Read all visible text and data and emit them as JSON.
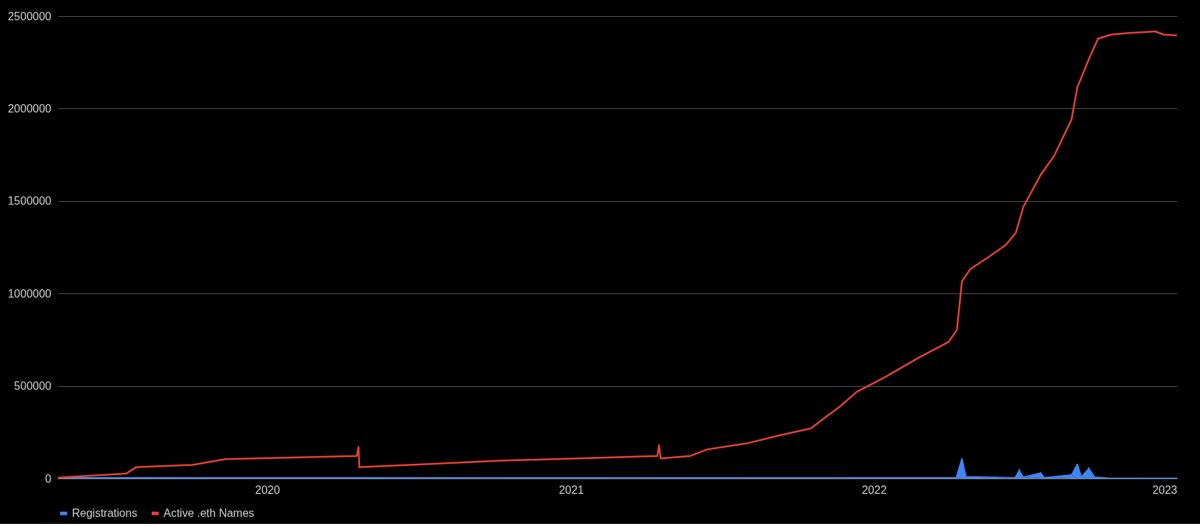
{
  "chart_data": {
    "type": "line",
    "xlim": [
      "2019-04-24",
      "2023-01-01"
    ],
    "xticks": [
      "2020",
      "2021",
      "2022",
      "2023"
    ],
    "ylim": [
      0,
      2500000
    ],
    "yticks": [
      0,
      500000,
      1000000,
      1500000,
      2000000,
      2500000
    ],
    "grid": "y",
    "legend": "bottom",
    "series": [
      {
        "name": "Registrations",
        "type": "area",
        "color": "#4285f4",
        "x": [
          "2019-04-24",
          "2022-04-10",
          "2022-04-17",
          "2022-04-22",
          "2022-06-20",
          "2022-06-25",
          "2022-06-30",
          "2022-07-21",
          "2022-07-25",
          "2022-08-27",
          "2022-09-03",
          "2022-09-08",
          "2022-09-17",
          "2022-09-24",
          "2022-10-10",
          "2023-01-01"
        ],
        "values": [
          5000,
          5000,
          110000,
          10000,
          5000,
          45000,
          8000,
          30000,
          5000,
          20000,
          78000,
          10000,
          55000,
          8000,
          3000,
          2000
        ]
      },
      {
        "name": "Active .eth Names",
        "color": "#ea4335",
        "x": [
          "2019-04-24",
          "2019-07-15",
          "2019-07-27",
          "2019-10-03",
          "2019-11-12",
          "2020-04-18",
          "2020-04-20",
          "2020-04-21",
          "2020-07-19",
          "2020-10-07",
          "2021-04-15",
          "2021-04-17",
          "2021-04-19",
          "2021-05-25",
          "2021-06-14",
          "2021-08-03",
          "2021-09-12",
          "2021-10-17",
          "2021-11-01",
          "2021-11-21",
          "2021-12-11",
          "2022-01-12",
          "2022-02-23",
          "2022-04-01",
          "2022-04-11",
          "2022-04-17",
          "2022-04-27",
          "2022-05-19",
          "2022-06-09",
          "2022-06-21",
          "2022-06-30",
          "2022-07-21",
          "2022-08-06",
          "2022-08-27",
          "2022-09-03",
          "2022-09-17",
          "2022-09-28",
          "2022-10-14",
          "2022-11-04",
          "2022-12-06",
          "2022-12-16",
          "2023-01-01"
        ],
        "values": [
          5000,
          26000,
          61000,
          74000,
          105000,
          122000,
          170000,
          61000,
          79000,
          96000,
          122000,
          180000,
          109000,
          122000,
          157000,
          192000,
          236000,
          271000,
          323000,
          389000,
          468000,
          542000,
          651000,
          739000,
          804000,
          1066000,
          1132000,
          1197000,
          1263000,
          1329000,
          1469000,
          1643000,
          1744000,
          1940000,
          2115000,
          2268000,
          2378000,
          2400000,
          2408000,
          2417000,
          2400000,
          2395000
        ]
      }
    ]
  }
}
